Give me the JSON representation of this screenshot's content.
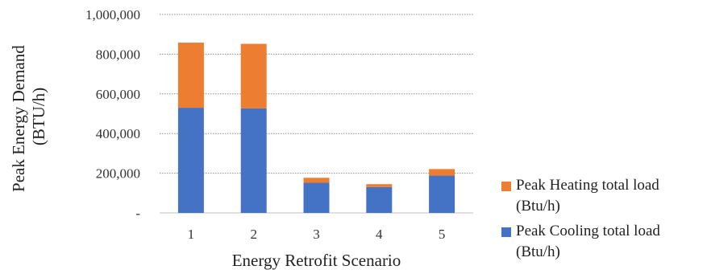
{
  "chart_data": {
    "type": "bar",
    "stacked": true,
    "xlabel": "Energy Retrofit Scenario",
    "ylabel": "Peak Energy Demand (BTU/h)",
    "ylabel_lines": [
      "Peak Energy Demand",
      "(BTU/h)"
    ],
    "categories": [
      "1",
      "2",
      "3",
      "4",
      "5"
    ],
    "y_ticks": [
      0,
      200000,
      400000,
      600000,
      800000,
      1000000
    ],
    "y_tick_labels": [
      "-",
      "200,000",
      "400,000",
      "600,000",
      "800,000",
      "1,000,000"
    ],
    "ylim": [
      0,
      1000000
    ],
    "grid": true,
    "legend_position": "right",
    "series": [
      {
        "name": "Peak Cooling total load (Btu/h)",
        "name_lines": [
          "Peak Cooling total load",
          "(Btu/h)"
        ],
        "values": [
          530000,
          527000,
          152000,
          130000,
          188000
        ],
        "color": "#4472C4"
      },
      {
        "name": "Peak Heating total load (Btu/h)",
        "name_lines": [
          "Peak Heating total load",
          "(Btu/h)"
        ],
        "values": [
          328000,
          325000,
          25000,
          15000,
          33000
        ],
        "color": "#ED7D31"
      }
    ]
  }
}
